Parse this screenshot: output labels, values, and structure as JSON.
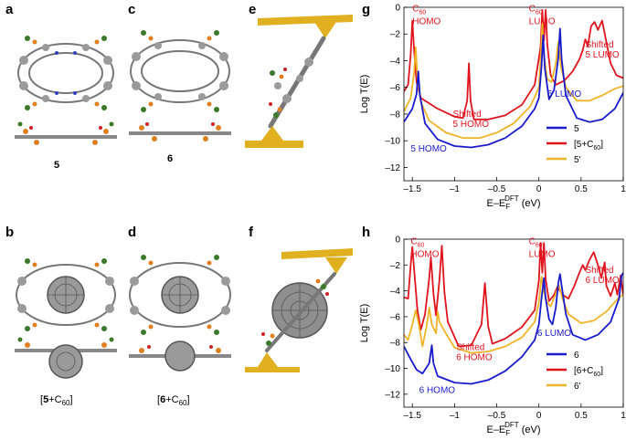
{
  "panels": {
    "a": "a",
    "b": "b",
    "c": "c",
    "d": "d",
    "e": "e",
    "f": "f",
    "g": "g",
    "h": "h"
  },
  "molecule_labels": {
    "a": "5",
    "c": "6",
    "b_prefix": "[",
    "b_num": "5",
    "b_suffix": "+C",
    "b_sub": "60",
    "b_close": "]",
    "d_prefix": "[",
    "d_num": "6",
    "d_suffix": "+C",
    "d_sub": "60",
    "d_close": "]"
  },
  "colors": {
    "blue": "#1a1acd",
    "red": "#e0141e",
    "orange": "#f0b428",
    "gold": "#e0b020",
    "carbon": "#8a8a8a"
  },
  "chart_data": [
    {
      "id": "g",
      "type": "line",
      "xlabel_main": "E–E",
      "xlabel_sub": "F",
      "xlabel_sup": "DFT",
      "xlabel_unit": " (eV)",
      "ylabel": "Log T(E)",
      "xlim": [
        -1.6,
        1.0
      ],
      "ylim": [
        -13,
        0
      ],
      "xticks": [
        -1.5,
        -1,
        -0.5,
        0,
        0.5,
        1
      ],
      "xtick_labels": [
        "–1.5",
        "–1",
        "–0.5",
        "0",
        "0.5",
        "1"
      ],
      "yticks": [
        0,
        -2,
        -4,
        -6,
        -8,
        -10,
        -12
      ],
      "ytick_labels": [
        "0",
        "–2",
        "–4",
        "–6",
        "–8",
        "–10",
        "–12"
      ],
      "legend": [
        {
          "label": "5",
          "color": "#1a1acd"
        },
        {
          "label": "[5+C60]",
          "color": "#e0141e"
        },
        {
          "label": "5'",
          "color": "#f0b428"
        }
      ],
      "annotations": [
        {
          "lines": [
            "C60",
            "HOMO"
          ],
          "color": "red",
          "x": -1.5,
          "y": -0.3
        },
        {
          "lines": [
            "C60",
            "LUMO"
          ],
          "color": "red",
          "x": -0.12,
          "y": -0.3
        },
        {
          "lines": [
            "Shifted",
            "5 LUMO"
          ],
          "color": "red",
          "x": 0.55,
          "y": -3.0
        },
        {
          "lines": [
            "5 LUMO"
          ],
          "color": "blue",
          "x": 0.1,
          "y": -6.7
        },
        {
          "lines": [
            "Shifted",
            "5 HOMO"
          ],
          "color": "red",
          "x": -1.02,
          "y": -8.2
        },
        {
          "lines": [
            "5 HOMO"
          ],
          "color": "blue",
          "x": -1.52,
          "y": -10.8
        }
      ],
      "series": [
        {
          "name": "5",
          "color": "#1a1acd",
          "points": [
            [
              -1.6,
              -8.6
            ],
            [
              -1.5,
              -7.6
            ],
            [
              -1.45,
              -6.5
            ],
            [
              -1.43,
              -4.8
            ],
            [
              -1.41,
              -6.6
            ],
            [
              -1.35,
              -8.7
            ],
            [
              -1.2,
              -9.9
            ],
            [
              -1.0,
              -10.4
            ],
            [
              -0.8,
              -10.5
            ],
            [
              -0.6,
              -10.3
            ],
            [
              -0.4,
              -9.8
            ],
            [
              -0.2,
              -8.9
            ],
            [
              -0.05,
              -7.6
            ],
            [
              0.0,
              -6.8
            ],
            [
              0.03,
              -4.5
            ],
            [
              0.05,
              -2.1
            ],
            [
              0.07,
              -4.6
            ],
            [
              0.12,
              -6.9
            ],
            [
              0.18,
              -6.2
            ],
            [
              0.23,
              -3.8
            ],
            [
              0.25,
              -1.6
            ],
            [
              0.27,
              -3.9
            ],
            [
              0.32,
              -6.6
            ],
            [
              0.45,
              -8.3
            ],
            [
              0.6,
              -8.6
            ],
            [
              0.75,
              -8.4
            ],
            [
              0.9,
              -7.6
            ],
            [
              1.0,
              -6.4
            ]
          ]
        },
        {
          "name": "[5+C60]",
          "color": "#e0141e",
          "points": [
            [
              -1.6,
              -6.3
            ],
            [
              -1.55,
              -5.8
            ],
            [
              -1.52,
              -3.5
            ],
            [
              -1.5,
              -1.0
            ],
            [
              -1.48,
              -3.2
            ],
            [
              -1.45,
              -5.6
            ],
            [
              -1.4,
              -6.8
            ],
            [
              -1.2,
              -7.6
            ],
            [
              -1.0,
              -8.2
            ],
            [
              -0.9,
              -8.3
            ],
            [
              -0.85,
              -7.0
            ],
            [
              -0.83,
              -4.2
            ],
            [
              -0.81,
              -7.0
            ],
            [
              -0.77,
              -8.4
            ],
            [
              -0.6,
              -8.4
            ],
            [
              -0.4,
              -8.1
            ],
            [
              -0.2,
              -7.3
            ],
            [
              -0.05,
              -5.8
            ],
            [
              0.02,
              -3.0
            ],
            [
              0.04,
              -0.2
            ],
            [
              0.06,
              -2.5
            ],
            [
              0.08,
              -0.2
            ],
            [
              0.1,
              -2.8
            ],
            [
              0.14,
              -5.1
            ],
            [
              0.2,
              -5.8
            ],
            [
              0.3,
              -5.5
            ],
            [
              0.4,
              -4.8
            ],
            [
              0.48,
              -3.9
            ],
            [
              0.52,
              -3.2
            ],
            [
              0.55,
              -2.4
            ],
            [
              0.58,
              -2.9
            ],
            [
              0.62,
              -1.4
            ],
            [
              0.66,
              -1.1
            ],
            [
              0.7,
              -1.7
            ],
            [
              0.75,
              -1.0
            ],
            [
              0.8,
              -2.6
            ],
            [
              0.85,
              -4.2
            ],
            [
              0.92,
              -5.1
            ],
            [
              1.0,
              -5.3
            ]
          ]
        },
        {
          "name": "5'",
          "color": "#f0b428",
          "points": [
            [
              -1.6,
              -7.8
            ],
            [
              -1.52,
              -6.8
            ],
            [
              -1.48,
              -4.9
            ],
            [
              -1.46,
              -3.0
            ],
            [
              -1.44,
              -5.3
            ],
            [
              -1.4,
              -7.1
            ],
            [
              -1.3,
              -8.5
            ],
            [
              -1.1,
              -9.4
            ],
            [
              -0.9,
              -9.8
            ],
            [
              -0.7,
              -9.8
            ],
            [
              -0.5,
              -9.4
            ],
            [
              -0.3,
              -8.7
            ],
            [
              -0.1,
              -7.4
            ],
            [
              0.0,
              -6.0
            ],
            [
              0.02,
              -4.0
            ],
            [
              0.04,
              -1.2
            ],
            [
              0.06,
              -3.6
            ],
            [
              0.1,
              -5.4
            ],
            [
              0.15,
              -5.6
            ],
            [
              0.2,
              -4.2
            ],
            [
              0.23,
              -2.6
            ],
            [
              0.26,
              -4.4
            ],
            [
              0.32,
              -6.0
            ],
            [
              0.45,
              -7.0
            ],
            [
              0.6,
              -7.0
            ],
            [
              0.75,
              -6.6
            ],
            [
              0.9,
              -6.1
            ],
            [
              1.0,
              -5.9
            ]
          ]
        }
      ]
    },
    {
      "id": "h",
      "type": "line",
      "xlabel_main": "E–E",
      "xlabel_sub": "F",
      "xlabel_sup": "DFT",
      "xlabel_unit": " (eV)",
      "ylabel": "Log T(E)",
      "xlim": [
        -1.6,
        1.0
      ],
      "ylim": [
        -13,
        0
      ],
      "xticks": [
        -1.5,
        -1,
        -0.5,
        0,
        0.5,
        1
      ],
      "xtick_labels": [
        "–1.5",
        "–1",
        "–0.5",
        "0",
        "0.5",
        "1"
      ],
      "yticks": [
        0,
        -2,
        -4,
        -6,
        -8,
        -10,
        -12
      ],
      "ytick_labels": [
        "0",
        "–2",
        "–4",
        "–6",
        "–8",
        "–10",
        "–12"
      ],
      "legend": [
        {
          "label": "6",
          "color": "#1a1acd"
        },
        {
          "label": "[6+C60]",
          "color": "#e0141e"
        },
        {
          "label": "6'",
          "color": "#f0b428"
        }
      ],
      "annotations": [
        {
          "lines": [
            "C60",
            "HOMO"
          ],
          "color": "red",
          "x": -1.52,
          "y": -0.4
        },
        {
          "lines": [
            "C60",
            "LUMO"
          ],
          "color": "red",
          "x": -0.12,
          "y": -0.4
        },
        {
          "lines": [
            "Shifted",
            "6 LUMO"
          ],
          "color": "red",
          "x": 0.55,
          "y": -2.6
        },
        {
          "lines": [
            "6 LUMO"
          ],
          "color": "blue",
          "x": -0.02,
          "y": -7.5
        },
        {
          "lines": [
            "Shifted",
            "6 HOMO"
          ],
          "color": "red",
          "x": -0.98,
          "y": -8.6
        },
        {
          "lines": [
            "6 HOMO"
          ],
          "color": "blue",
          "x": -1.42,
          "y": -11.9
        }
      ],
      "series": [
        {
          "name": "6",
          "color": "#1a1acd",
          "points": [
            [
              -1.6,
              -8.3
            ],
            [
              -1.52,
              -9.3
            ],
            [
              -1.45,
              -10.1
            ],
            [
              -1.38,
              -10.4
            ],
            [
              -1.3,
              -9.6
            ],
            [
              -1.27,
              -8.2
            ],
            [
              -1.25,
              -9.6
            ],
            [
              -1.2,
              -10.6
            ],
            [
              -1.0,
              -11.1
            ],
            [
              -0.8,
              -11.2
            ],
            [
              -0.6,
              -10.9
            ],
            [
              -0.4,
              -10.2
            ],
            [
              -0.2,
              -9.1
            ],
            [
              -0.05,
              -7.8
            ],
            [
              0.0,
              -6.6
            ],
            [
              0.03,
              -4.6
            ],
            [
              0.06,
              -3.0
            ],
            [
              0.08,
              -4.6
            ],
            [
              0.12,
              -6.2
            ],
            [
              0.16,
              -6.6
            ],
            [
              0.2,
              -5.3
            ],
            [
              0.23,
              -3.4
            ],
            [
              0.25,
              -2.7
            ],
            [
              0.27,
              -3.6
            ],
            [
              0.32,
              -5.8
            ],
            [
              0.4,
              -7.4
            ],
            [
              0.55,
              -7.8
            ],
            [
              0.7,
              -7.4
            ],
            [
              0.85,
              -6.4
            ],
            [
              0.95,
              -4.6
            ],
            [
              0.98,
              -2.8
            ],
            [
              1.0,
              -2.6
            ]
          ]
        },
        {
          "name": "[6+C60]",
          "color": "#e0141e",
          "points": [
            [
              -1.6,
              -4.5
            ],
            [
              -1.55,
              -4.6
            ],
            [
              -1.52,
              -2.0
            ],
            [
              -1.5,
              -0.6
            ],
            [
              -1.48,
              -2.3
            ],
            [
              -1.44,
              -5.5
            ],
            [
              -1.4,
              -7.0
            ],
            [
              -1.35,
              -5.8
            ],
            [
              -1.3,
              -3.0
            ],
            [
              -1.28,
              -1.4
            ],
            [
              -1.25,
              -4.2
            ],
            [
              -1.22,
              -5.9
            ],
            [
              -1.18,
              -3.2
            ],
            [
              -1.15,
              -0.5
            ],
            [
              -1.12,
              -4.1
            ],
            [
              -1.08,
              -6.4
            ],
            [
              -0.95,
              -8.3
            ],
            [
              -0.8,
              -8.2
            ],
            [
              -0.68,
              -6.6
            ],
            [
              -0.64,
              -3.4
            ],
            [
              -0.6,
              -6.8
            ],
            [
              -0.55,
              -8.1
            ],
            [
              -0.4,
              -7.7
            ],
            [
              -0.2,
              -6.8
            ],
            [
              -0.05,
              -5.5
            ],
            [
              0.0,
              -3.2
            ],
            [
              0.02,
              -0.3
            ],
            [
              0.04,
              -2.6
            ],
            [
              0.06,
              -0.3
            ],
            [
              0.08,
              -3.1
            ],
            [
              0.12,
              -4.8
            ],
            [
              0.18,
              -4.3
            ],
            [
              0.22,
              -3.7
            ],
            [
              0.28,
              -4.3
            ],
            [
              0.35,
              -4.6
            ],
            [
              0.42,
              -3.6
            ],
            [
              0.48,
              -2.6
            ],
            [
              0.52,
              -2.0
            ],
            [
              0.55,
              -2.4
            ],
            [
              0.6,
              -1.6
            ],
            [
              0.65,
              -1.0
            ],
            [
              0.7,
              -2.0
            ],
            [
              0.74,
              -3.0
            ],
            [
              0.78,
              -1.8
            ],
            [
              0.8,
              -3.6
            ],
            [
              0.85,
              -4.4
            ],
            [
              0.9,
              -3.4
            ],
            [
              0.93,
              -4.3
            ],
            [
              0.97,
              -2.8
            ],
            [
              1.0,
              -4.4
            ]
          ]
        },
        {
          "name": "6'",
          "color": "#f0b428",
          "points": [
            [
              -1.6,
              -7.4
            ],
            [
              -1.55,
              -7.8
            ],
            [
              -1.5,
              -6.6
            ],
            [
              -1.46,
              -5.5
            ],
            [
              -1.42,
              -6.7
            ],
            [
              -1.38,
              -8.3
            ],
            [
              -1.33,
              -6.7
            ],
            [
              -1.3,
              -5.3
            ],
            [
              -1.27,
              -6.6
            ],
            [
              -1.22,
              -7.3
            ],
            [
              -1.2,
              -5.6
            ],
            [
              -1.18,
              -6.4
            ],
            [
              -1.12,
              -7.1
            ],
            [
              -1.0,
              -8.4
            ],
            [
              -0.8,
              -8.8
            ],
            [
              -0.6,
              -8.7
            ],
            [
              -0.4,
              -8.3
            ],
            [
              -0.2,
              -7.6
            ],
            [
              -0.05,
              -6.4
            ],
            [
              0.0,
              -4.9
            ],
            [
              0.03,
              -2.9
            ],
            [
              0.06,
              -4.1
            ],
            [
              0.1,
              -4.9
            ],
            [
              0.14,
              -5.2
            ],
            [
              0.2,
              -4.2
            ],
            [
              0.24,
              -3.6
            ],
            [
              0.28,
              -4.6
            ],
            [
              0.35,
              -5.8
            ],
            [
              0.5,
              -6.5
            ],
            [
              0.65,
              -6.3
            ],
            [
              0.8,
              -5.6
            ],
            [
              0.95,
              -4.5
            ],
            [
              1.0,
              -4.3
            ]
          ]
        }
      ]
    }
  ]
}
